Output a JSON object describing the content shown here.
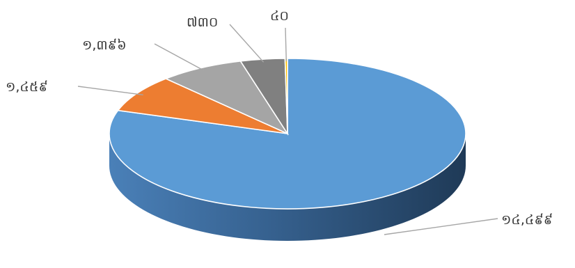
{
  "chart_data": {
    "type": "pie",
    "style": "3d",
    "title": "",
    "start": "12 o'clock",
    "direction": "clockwise",
    "slices": [
      {
        "value": 14499,
        "label": "១៤,៤៩៩",
        "color": "#5b9bd5"
      },
      {
        "value": 1459,
        "label": "១,៤៥៩",
        "color": "#ed7d31"
      },
      {
        "value": 1396,
        "label": "១,៣៩៦",
        "color": "#a5a5a5"
      },
      {
        "value": 730,
        "label": "៧៣០",
        "color": "#808080"
      },
      {
        "value": 40,
        "label": "៤០",
        "color": "#ffc000"
      }
    ]
  }
}
